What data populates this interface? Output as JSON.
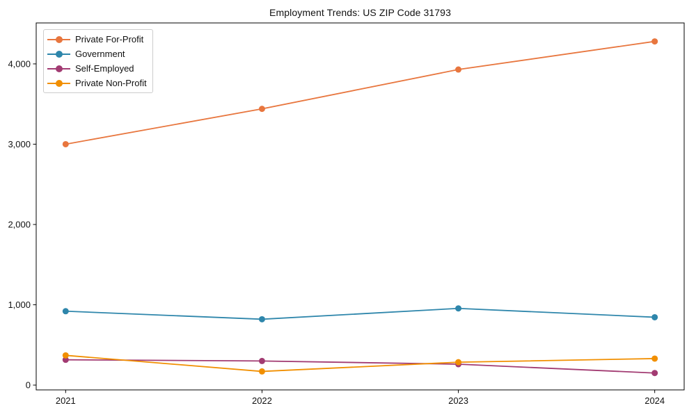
{
  "title": "Employment Trends: US ZIP Code 31793",
  "chart_data": {
    "type": "line",
    "title": "Employment Trends: US ZIP Code 31793",
    "x": [
      "2021",
      "2022",
      "2023",
      "2024"
    ],
    "series": [
      {
        "name": "Private For-Profit",
        "color": "#E8763E",
        "values": [
          3000,
          3440,
          3930,
          4280
        ]
      },
      {
        "name": "Government",
        "color": "#2E86AB",
        "values": [
          920,
          820,
          955,
          845
        ]
      },
      {
        "name": "Self-Employed",
        "color": "#A23B72",
        "values": [
          315,
          300,
          260,
          150
        ]
      },
      {
        "name": "Private Non-Profit",
        "color": "#F18F01",
        "values": [
          370,
          170,
          285,
          330
        ]
      }
    ],
    "yticks": [
      {
        "value": 0,
        "label": "0"
      },
      {
        "value": 1000,
        "label": "1,000"
      },
      {
        "value": 2000,
        "label": "2,000"
      },
      {
        "value": 3000,
        "label": "3,000"
      },
      {
        "value": 4000,
        "label": "4,000"
      }
    ],
    "xlabel": "",
    "ylabel": "",
    "ylim": [
      -60,
      4510
    ],
    "xlim": [
      -0.15,
      3.15
    ],
    "grid": false,
    "legend_position": "upper left",
    "background_color": "#ffffff",
    "axis_color": "#000000",
    "text_color": "#111111"
  }
}
